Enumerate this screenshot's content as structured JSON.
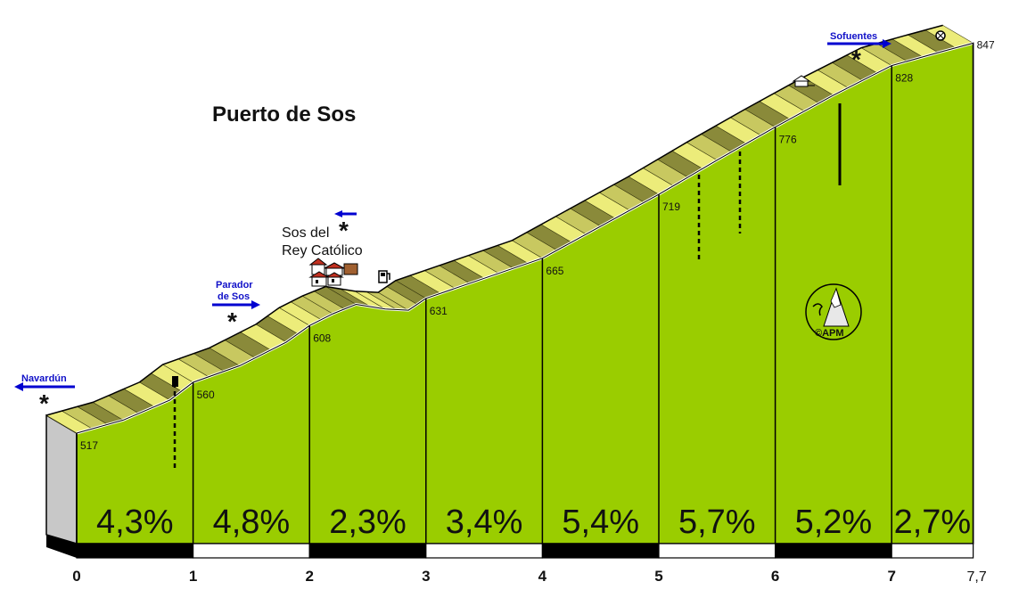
{
  "chart_data": {
    "type": "area",
    "title": "Puerto de Sos",
    "x_unit": "km",
    "x": [
      0,
      1,
      2,
      3,
      4,
      5,
      6,
      7,
      7.7
    ],
    "elevations": [
      517,
      560,
      608,
      631,
      665,
      719,
      776,
      828,
      847
    ],
    "segments": [
      {
        "from": 0,
        "to": 1,
        "grade": "4,3%"
      },
      {
        "from": 1,
        "to": 2,
        "grade": "4,8%"
      },
      {
        "from": 2,
        "to": 3,
        "grade": "2,3%"
      },
      {
        "from": 3,
        "to": 4,
        "grade": "3,4%"
      },
      {
        "from": 4,
        "to": 5,
        "grade": "5,4%"
      },
      {
        "from": 5,
        "to": 6,
        "grade": "5,7%"
      },
      {
        "from": 6,
        "to": 7,
        "grade": "5,2%"
      },
      {
        "from": 7,
        "to": 7.7,
        "grade": "2,7%"
      }
    ],
    "x_tick_labels": [
      "0",
      "1",
      "2",
      "3",
      "4",
      "5",
      "6",
      "7",
      "7,7"
    ],
    "annotations": {
      "town": "Sos del Rey Católico",
      "town_lines": [
        "Sos del",
        "Rey Católico"
      ],
      "junctions": [
        {
          "label": "Navardún",
          "km": 0,
          "direction": "left"
        },
        {
          "label": "Parador de Sos",
          "label_lines": [
            "Parador",
            "de Sos"
          ],
          "km": 1.3,
          "direction": "right"
        },
        {
          "label": "",
          "km": 2.3,
          "direction": "left"
        },
        {
          "label": "Sofuentes",
          "km": 6.7,
          "direction": "right"
        }
      ],
      "watermark": "©APM"
    }
  },
  "colors": {
    "fill": "#9acd00",
    "road_light": "#ecec7a",
    "road_dark": "#8a8a3a",
    "arrow": "#0000d0",
    "base_side": "#c8c8c8"
  },
  "icons": [
    "town-icon",
    "fuel-pump-icon",
    "house-icon",
    "viewpoint-icon",
    "apm-logo-icon"
  ]
}
